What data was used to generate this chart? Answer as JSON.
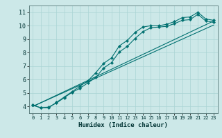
{
  "xlabel": "Humidex (Indice chaleur)",
  "bg_color": "#cce8e8",
  "line_color": "#007070",
  "xlim": [
    -0.5,
    23.5
  ],
  "ylim": [
    3.5,
    11.5
  ],
  "xticks": [
    0,
    1,
    2,
    3,
    4,
    5,
    6,
    7,
    8,
    9,
    10,
    11,
    12,
    13,
    14,
    15,
    16,
    17,
    18,
    19,
    20,
    21,
    22,
    23
  ],
  "yticks": [
    4,
    5,
    6,
    7,
    8,
    9,
    10,
    11
  ],
  "lines": [
    {
      "x": [
        0,
        1,
        2,
        3,
        4,
        5,
        6,
        7,
        8,
        9,
        10,
        11,
        12,
        13,
        14,
        15,
        16,
        17,
        18,
        19,
        20,
        21,
        22,
        23
      ],
      "y": [
        4.1,
        3.9,
        3.9,
        4.3,
        4.7,
        5.1,
        5.5,
        5.9,
        6.5,
        7.2,
        7.6,
        8.5,
        8.9,
        9.5,
        9.9,
        10.0,
        10.0,
        10.1,
        10.3,
        10.6,
        10.65,
        11.0,
        10.5,
        10.4
      ],
      "marker": true
    },
    {
      "x": [
        0,
        1,
        2,
        3,
        4,
        5,
        6,
        7,
        8,
        9,
        10,
        11,
        12,
        13,
        14,
        15,
        16,
        17,
        18,
        19,
        20,
        21,
        22,
        23
      ],
      "y": [
        4.1,
        3.9,
        3.95,
        4.25,
        4.65,
        5.05,
        5.35,
        5.75,
        6.15,
        6.85,
        7.25,
        8.05,
        8.45,
        9.05,
        9.55,
        9.85,
        9.9,
        9.95,
        10.15,
        10.4,
        10.45,
        10.85,
        10.35,
        10.25
      ],
      "marker": true
    },
    {
      "x": [
        0,
        23
      ],
      "y": [
        4.0,
        10.35
      ],
      "marker": false
    },
    {
      "x": [
        0,
        23
      ],
      "y": [
        4.0,
        10.05
      ],
      "marker": false
    }
  ]
}
